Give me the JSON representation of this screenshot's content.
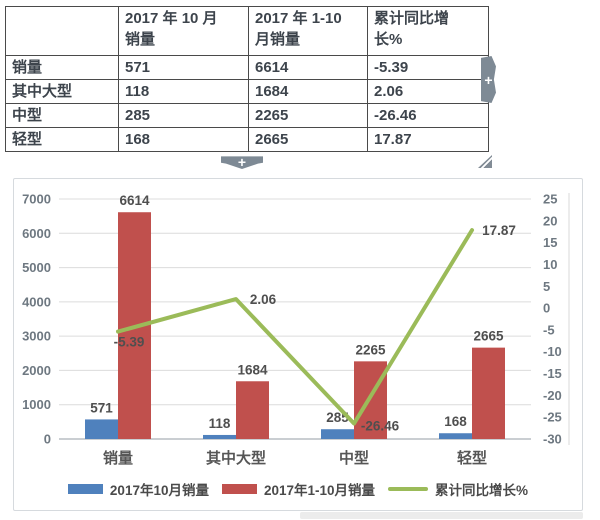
{
  "table": {
    "columns": [
      "",
      "2017 年 10 月\n销量",
      "2017 年 1-10\n月销量",
      "累计同比增\n长%"
    ],
    "rows": [
      [
        "销量",
        "571",
        "6614",
        "-5.39"
      ],
      [
        "其中大型",
        "118",
        "1684",
        "2.06"
      ],
      [
        "中型",
        "285",
        "2265",
        "-26.46"
      ],
      [
        "轻型",
        "168",
        "2665",
        "17.87"
      ]
    ]
  },
  "icons": {
    "add_column_plus": "+",
    "add_row_plus": "+"
  },
  "chart_data": {
    "type": "combo-bar-line",
    "categories": [
      "销量",
      "其中大型",
      "中型",
      "轻型"
    ],
    "series": [
      {
        "name": "2017年10月销量",
        "type": "bar",
        "axis": "left",
        "color": "#4f81bd",
        "values": [
          571,
          118,
          285,
          168
        ]
      },
      {
        "name": "2017年1-10月销量",
        "type": "bar",
        "axis": "left",
        "color": "#c0504d",
        "values": [
          6614,
          1684,
          2265,
          2665
        ]
      },
      {
        "name": "累计同比增长%",
        "type": "line",
        "axis": "right",
        "color": "#9bbb59",
        "values": [
          -5.39,
          2.06,
          -26.46,
          17.87
        ]
      }
    ],
    "left_axis": {
      "min": 0,
      "max": 7000,
      "step": 1000
    },
    "right_axis": {
      "min": -30,
      "max": 25,
      "step": 5
    },
    "grid": true,
    "legend_position": "bottom",
    "data_labels": true
  }
}
